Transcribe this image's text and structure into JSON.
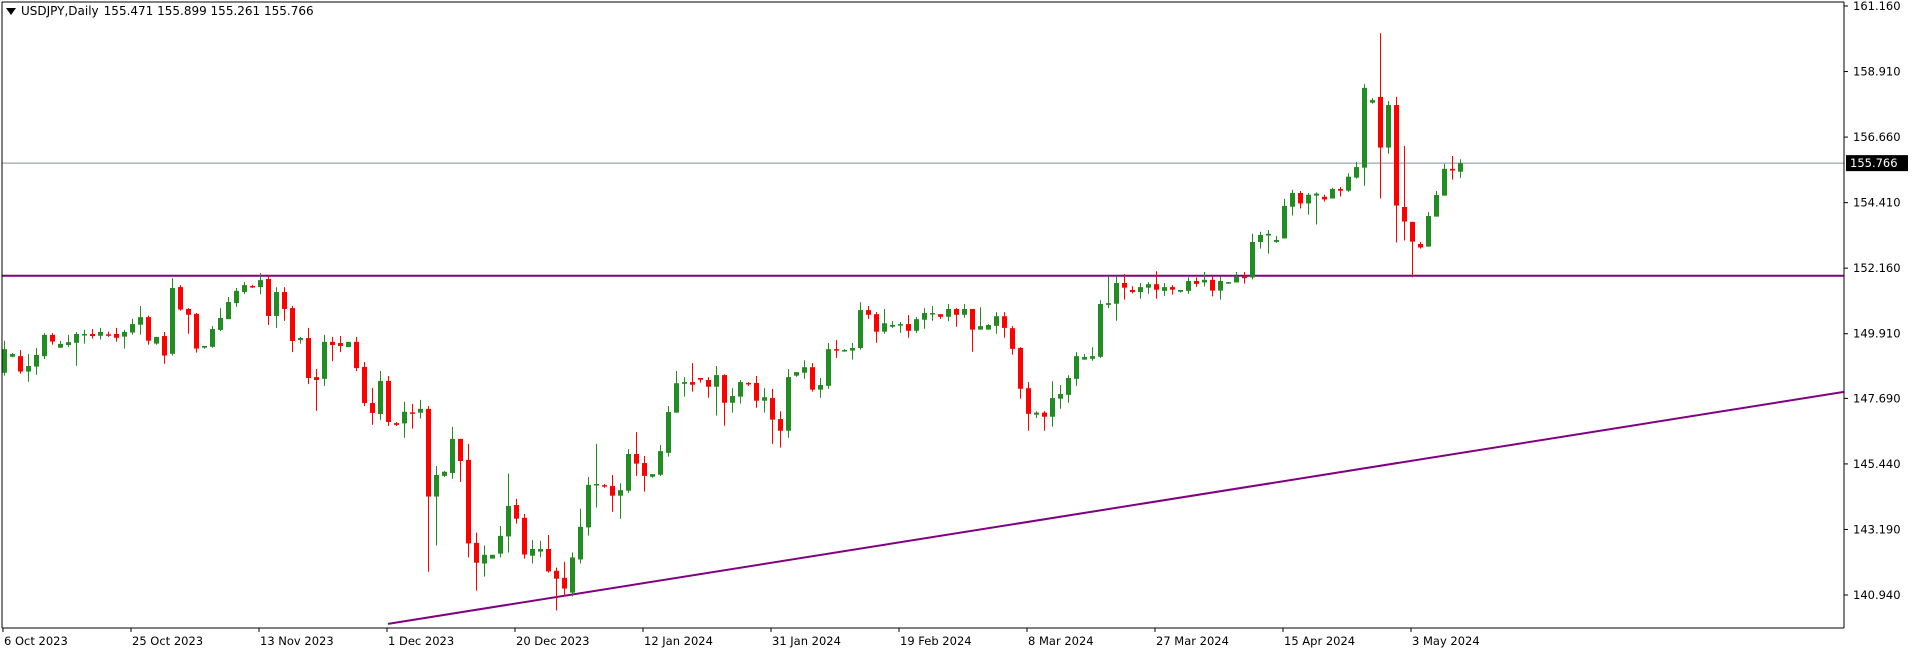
{
  "header": {
    "symbol_timeframe": "USDJPY,Daily",
    "ohlc_text": "155.471 155.899 155.261 155.766",
    "menu_icon": "triangle-down-icon"
  },
  "colors": {
    "bull": "#228B22",
    "bear": "#FF0000",
    "levels": "#800080",
    "current_price_line": "#8090A0",
    "price_label_bg": "#000000",
    "price_label_text": "#FFFFFF"
  },
  "chart_data": {
    "type": "candlestick",
    "symbol": "USDJPY",
    "timeframe": "Daily",
    "ylim": [
      139.6,
      161.36
    ],
    "yticks": [
      "161.160",
      "158.910",
      "156.660",
      "154.410",
      "152.160",
      "149.910",
      "147.690",
      "145.440",
      "143.190",
      "140.940"
    ],
    "xticks": [
      "6 Oct 2023",
      "25 Oct 2023",
      "13 Nov 2023",
      "1 Dec 2023",
      "20 Dec 2023",
      "12 Jan 2024",
      "31 Jan 2024",
      "19 Feb 2024",
      "8 Mar 2024",
      "27 Mar 2024",
      "15 Apr 2024",
      "3 May 2024"
    ],
    "bars_per_xtick": 16,
    "current_price": "155.766",
    "horizontal_level": 151.9,
    "trendline": {
      "start": [
        "1 Dec 2023",
        139.95
      ],
      "through": [
        "3 May 2024",
        145.55
      ]
    },
    "grid": false,
    "ohlc_columns": [
      "open",
      "high",
      "low",
      "close"
    ],
    "candles": [
      [
        148.57,
        149.67,
        148.47,
        149.38
      ],
      [
        149.12,
        149.25,
        149.1,
        149.21
      ],
      [
        149.14,
        149.35,
        148.54,
        148.61
      ],
      [
        148.61,
        149.21,
        148.26,
        148.8
      ],
      [
        148.78,
        149.42,
        148.5,
        149.18
      ],
      [
        149.14,
        149.93,
        149.04,
        149.87
      ],
      [
        149.87,
        149.93,
        149.53,
        149.64
      ],
      [
        149.43,
        149.66,
        149.43,
        149.56
      ],
      [
        149.52,
        149.87,
        149.46,
        149.62
      ],
      [
        149.6,
        149.97,
        148.81,
        149.9
      ],
      [
        149.88,
        150.04,
        149.57,
        149.9
      ],
      [
        149.9,
        150.07,
        149.74,
        149.83
      ],
      [
        149.84,
        150.11,
        149.71,
        149.97
      ],
      [
        149.89,
        149.98,
        149.8,
        149.86
      ],
      [
        149.9,
        150.11,
        149.64,
        149.77
      ],
      [
        149.81,
        150.04,
        149.4,
        149.97
      ],
      [
        149.95,
        150.42,
        149.88,
        150.24
      ],
      [
        150.22,
        150.86,
        149.88,
        150.48
      ],
      [
        150.48,
        150.53,
        149.53,
        149.67
      ],
      [
        149.57,
        149.8,
        149.53,
        149.8
      ],
      [
        149.83,
        149.97,
        148.88,
        149.16
      ],
      [
        149.22,
        151.82,
        149.16,
        151.48
      ],
      [
        151.51,
        151.58,
        150.7,
        150.74
      ],
      [
        150.76,
        150.79,
        149.91,
        150.56
      ],
      [
        150.59,
        150.62,
        149.26,
        149.4
      ],
      [
        149.43,
        149.49,
        149.4,
        149.49
      ],
      [
        149.46,
        150.17,
        149.43,
        150.07
      ],
      [
        150.04,
        150.79,
        150.0,
        150.45
      ],
      [
        150.41,
        151.17,
        150.41,
        151.0
      ],
      [
        150.96,
        151.48,
        150.83,
        151.38
      ],
      [
        151.34,
        151.68,
        151.27,
        151.58
      ],
      [
        151.55,
        151.59,
        151.48,
        151.53
      ],
      [
        151.51,
        151.99,
        151.27,
        151.75
      ],
      [
        151.79,
        151.93,
        150.21,
        150.52
      ],
      [
        150.52,
        151.51,
        150.11,
        151.34
      ],
      [
        151.34,
        151.51,
        150.35,
        150.76
      ],
      [
        150.79,
        150.86,
        149.28,
        149.66
      ],
      [
        149.69,
        149.8,
        149.57,
        149.76
      ],
      [
        149.76,
        150.11,
        148.18,
        148.39
      ],
      [
        148.42,
        148.7,
        147.26,
        148.32
      ],
      [
        148.36,
        149.87,
        148.12,
        149.63
      ],
      [
        149.63,
        149.8,
        148.97,
        149.52
      ],
      [
        149.59,
        149.83,
        149.28,
        149.49
      ],
      [
        149.45,
        149.63,
        149.45,
        149.63
      ],
      [
        149.63,
        149.8,
        148.63,
        148.73
      ],
      [
        148.77,
        148.94,
        147.43,
        147.53
      ],
      [
        147.53,
        148.05,
        146.78,
        147.19
      ],
      [
        147.15,
        148.63,
        146.95,
        148.29
      ],
      [
        148.29,
        148.46,
        146.74,
        146.88
      ],
      [
        146.84,
        146.88,
        146.74,
        146.78
      ],
      [
        146.83,
        147.57,
        146.34,
        147.23
      ],
      [
        147.21,
        147.5,
        146.65,
        147.19
      ],
      [
        147.2,
        147.64,
        147.0,
        147.33
      ],
      [
        147.33,
        147.43,
        141.74,
        144.32
      ],
      [
        144.32,
        145.37,
        142.64,
        145.06
      ],
      [
        145.03,
        145.2,
        144.99,
        145.17
      ],
      [
        145.13,
        146.71,
        144.93,
        146.3
      ],
      [
        146.3,
        146.3,
        144.82,
        145.54
      ],
      [
        145.58,
        146.13,
        142.23,
        142.71
      ],
      [
        142.73,
        143.08,
        141.09,
        142.05
      ],
      [
        142.02,
        142.64,
        141.57,
        142.32
      ],
      [
        142.19,
        142.32,
        142.19,
        142.32
      ],
      [
        142.36,
        143.31,
        142.23,
        142.97
      ],
      [
        142.95,
        145.11,
        142.4,
        144.0
      ],
      [
        144.03,
        144.24,
        143.39,
        143.56
      ],
      [
        143.59,
        143.72,
        142.19,
        142.33
      ],
      [
        142.29,
        142.83,
        142.02,
        142.52
      ],
      [
        142.43,
        142.8,
        142.23,
        142.52
      ],
      [
        142.52,
        143.0,
        141.71,
        141.75
      ],
      [
        141.77,
        141.88,
        140.41,
        141.5
      ],
      [
        141.53,
        142.08,
        140.89,
        141.16
      ],
      [
        141.02,
        142.4,
        140.89,
        142.23
      ],
      [
        142.16,
        143.9,
        142.02,
        143.28
      ],
      [
        143.26,
        144.99,
        142.98,
        144.72
      ],
      [
        144.7,
        146.13,
        143.94,
        144.75
      ],
      [
        144.71,
        144.75,
        144.62,
        144.66
      ],
      [
        144.68,
        145.06,
        143.8,
        144.35
      ],
      [
        144.35,
        144.78,
        143.56,
        144.54
      ],
      [
        144.52,
        145.95,
        144.45,
        145.78
      ],
      [
        145.78,
        146.53,
        145.03,
        145.45
      ],
      [
        145.47,
        145.71,
        144.49,
        145.03
      ],
      [
        145.0,
        145.09,
        144.97,
        145.09
      ],
      [
        145.07,
        146.09,
        145.03,
        145.88
      ],
      [
        145.82,
        147.43,
        145.69,
        147.22
      ],
      [
        147.2,
        148.63,
        147.2,
        148.21
      ],
      [
        148.19,
        148.42,
        147.75,
        148.25
      ],
      [
        148.25,
        148.9,
        147.92,
        148.16
      ],
      [
        148.39,
        148.39,
        148.23,
        148.33
      ],
      [
        148.32,
        148.42,
        147.71,
        148.09
      ],
      [
        148.09,
        148.8,
        147.1,
        148.49
      ],
      [
        148.49,
        148.52,
        146.75,
        147.54
      ],
      [
        147.54,
        148.04,
        147.2,
        147.77
      ],
      [
        147.75,
        148.32,
        147.51,
        148.25
      ],
      [
        148.22,
        148.25,
        148.12,
        148.19
      ],
      [
        148.22,
        148.46,
        147.37,
        147.61
      ],
      [
        147.61,
        148.04,
        147.2,
        147.73
      ],
      [
        147.7,
        148.01,
        146.13,
        146.96
      ],
      [
        146.98,
        147.25,
        146.0,
        146.58
      ],
      [
        146.58,
        148.7,
        146.34,
        148.42
      ],
      [
        148.47,
        148.59,
        148.43,
        148.59
      ],
      [
        148.57,
        149.0,
        148.36,
        148.76
      ],
      [
        148.76,
        148.9,
        147.92,
        147.99
      ],
      [
        147.99,
        148.39,
        147.71,
        148.15
      ],
      [
        148.12,
        149.59,
        148.02,
        149.38
      ],
      [
        149.38,
        149.69,
        149.08,
        149.36
      ],
      [
        149.33,
        149.38,
        149.29,
        149.35
      ],
      [
        149.33,
        149.59,
        149.02,
        149.42
      ],
      [
        149.42,
        150.99,
        149.36,
        150.72
      ],
      [
        150.72,
        150.86,
        150.42,
        150.56
      ],
      [
        150.58,
        150.65,
        149.6,
        149.98
      ],
      [
        149.98,
        150.76,
        149.91,
        150.27
      ],
      [
        150.15,
        150.34,
        150.11,
        150.21
      ],
      [
        150.22,
        150.31,
        149.94,
        150.24
      ],
      [
        150.24,
        150.55,
        149.77,
        150.01
      ],
      [
        150.01,
        150.48,
        149.94,
        150.41
      ],
      [
        150.39,
        150.79,
        150.08,
        150.62
      ],
      [
        150.6,
        150.86,
        150.35,
        150.62
      ],
      [
        150.58,
        150.58,
        150.42,
        150.49
      ],
      [
        150.49,
        150.93,
        150.34,
        150.76
      ],
      [
        150.76,
        150.79,
        150.15,
        150.56
      ],
      [
        150.56,
        150.93,
        150.46,
        150.76
      ],
      [
        150.76,
        150.76,
        149.29,
        150.05
      ],
      [
        150.05,
        150.82,
        150.05,
        150.17
      ],
      [
        150.05,
        150.24,
        150.05,
        150.21
      ],
      [
        150.18,
        150.65,
        149.91,
        150.51
      ],
      [
        150.51,
        150.65,
        149.77,
        150.11
      ],
      [
        150.1,
        150.17,
        149.19,
        149.39
      ],
      [
        149.42,
        149.45,
        147.68,
        148.02
      ],
      [
        148.04,
        148.25,
        146.58,
        147.16
      ],
      [
        147.13,
        147.25,
        147.02,
        147.2
      ],
      [
        147.2,
        147.25,
        146.58,
        147.06
      ],
      [
        147.06,
        148.28,
        146.72,
        147.7
      ],
      [
        147.68,
        148.15,
        147.33,
        147.84
      ],
      [
        147.81,
        148.49,
        147.54,
        148.39
      ],
      [
        148.36,
        149.28,
        148.12,
        149.14
      ],
      [
        149.02,
        149.21,
        149.02,
        149.11
      ],
      [
        149.05,
        149.45,
        148.98,
        149.14
      ],
      [
        149.12,
        151.06,
        149.08,
        150.93
      ],
      [
        150.9,
        151.89,
        150.79,
        150.96
      ],
      [
        150.94,
        151.89,
        150.35,
        151.65
      ],
      [
        151.65,
        151.96,
        151.08,
        151.49
      ],
      [
        151.41,
        151.54,
        151.3,
        151.34
      ],
      [
        151.34,
        151.65,
        151.11,
        151.51
      ],
      [
        151.49,
        151.68,
        151.28,
        151.61
      ],
      [
        151.61,
        152.06,
        151.11,
        151.42
      ],
      [
        151.38,
        151.65,
        151.21,
        151.51
      ],
      [
        151.51,
        151.58,
        151.25,
        151.42
      ],
      [
        151.35,
        151.41,
        151.32,
        151.41
      ],
      [
        151.38,
        151.85,
        151.28,
        151.72
      ],
      [
        151.72,
        151.85,
        151.52,
        151.62
      ],
      [
        151.67,
        152.03,
        151.53,
        151.76
      ],
      [
        151.76,
        151.87,
        151.19,
        151.39
      ],
      [
        151.39,
        151.87,
        151.08,
        151.72
      ],
      [
        151.67,
        151.69,
        151.62,
        151.68
      ],
      [
        151.67,
        152.03,
        151.67,
        151.87
      ],
      [
        151.87,
        152.03,
        151.63,
        151.84
      ],
      [
        151.84,
        153.34,
        151.77,
        153.06
      ],
      [
        153.06,
        153.41,
        152.83,
        153.3
      ],
      [
        153.28,
        153.47,
        152.66,
        153.34
      ],
      [
        153.06,
        153.27,
        153.03,
        153.13
      ],
      [
        153.18,
        154.54,
        153.18,
        154.3
      ],
      [
        154.27,
        154.85,
        153.97,
        154.74
      ],
      [
        154.74,
        154.81,
        154.21,
        154.38
      ],
      [
        154.38,
        154.74,
        154.0,
        154.68
      ],
      [
        154.65,
        154.76,
        153.66,
        154.72
      ],
      [
        154.61,
        154.68,
        154.45,
        154.52
      ],
      [
        154.55,
        154.92,
        154.55,
        154.88
      ],
      [
        154.88,
        154.95,
        154.62,
        154.82
      ],
      [
        154.82,
        155.42,
        154.78,
        155.3
      ],
      [
        155.27,
        155.81,
        155.23,
        155.63
      ],
      [
        155.61,
        158.48,
        154.99,
        158.35
      ],
      [
        157.84,
        158.0,
        157.81,
        157.93
      ],
      [
        158.04,
        160.23,
        154.55,
        156.3
      ],
      [
        156.3,
        157.9,
        156.09,
        157.76
      ],
      [
        157.76,
        158.04,
        153.04,
        154.31
      ],
      [
        154.26,
        156.36,
        153.11,
        153.76
      ],
      [
        153.75,
        153.75,
        151.85,
        153.07
      ],
      [
        152.99,
        153.06,
        152.83,
        152.87
      ],
      [
        152.9,
        154.09,
        152.9,
        153.95
      ],
      [
        153.93,
        154.81,
        153.93,
        154.67
      ],
      [
        154.65,
        155.74,
        154.65,
        155.57
      ],
      [
        155.57,
        156.01,
        155.2,
        155.51
      ],
      [
        155.471,
        155.899,
        155.261,
        155.766
      ]
    ]
  }
}
